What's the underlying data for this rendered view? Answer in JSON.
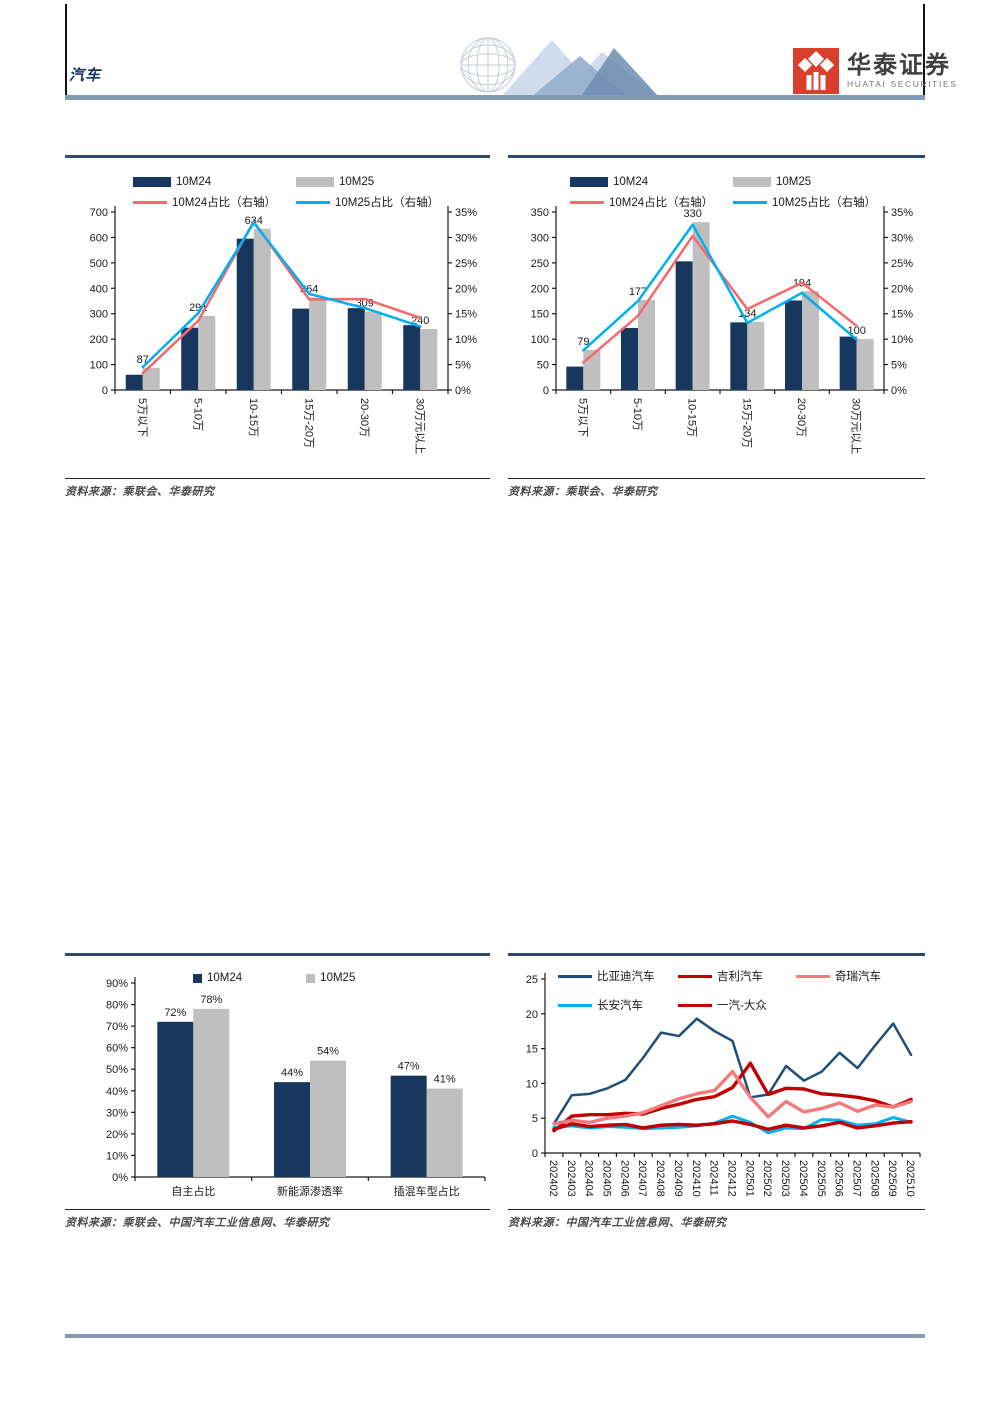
{
  "header": {
    "section_label": "汽车",
    "logo": {
      "brand_cn": "华泰证券",
      "brand_en": "HUATAI SECURITIES"
    }
  },
  "figures": [
    {
      "source": "资料来源：乘联会、华泰研究"
    },
    {
      "source": "资料来源：乘联会、华泰研究"
    },
    {
      "source": "资料来源：乘联会、中国汽车工业信息网、华泰研究"
    },
    {
      "source": "资料来源：中国汽车工业信息网、华泰研究"
    }
  ],
  "colors": {
    "navy": "#17375E",
    "gray": "#BFBFBF",
    "red": "#F4696B",
    "cyan": "#00B0F0",
    "byd": "#1F4E79",
    "darkred": "#C00000",
    "pink": "#F4797B",
    "steel_rule": "#8499B5",
    "fig_rule": "#2E4A73",
    "logo_red": "#D8402C"
  },
  "chart_data": [
    {
      "id": "top_left",
      "type": "bar+line",
      "categories": [
        "5万以下",
        "5-10万",
        "10-15万",
        "15万-20万",
        "20-30万",
        "30万元以上"
      ],
      "bar_series": [
        {
          "name": "10M24",
          "color_key": "navy",
          "show_labels": false,
          "values": [
            60,
            245,
            595,
            320,
            322,
            255
          ]
        },
        {
          "name": "10M25",
          "color_key": "gray",
          "show_labels": true,
          "values": [
            87,
            291,
            634,
            364,
            309,
            240
          ]
        }
      ],
      "line_series": [
        {
          "name": "10M24占比（右轴）",
          "color_key": "red",
          "values": [
            3.3,
            13.6,
            33.1,
            17.8,
            17.9,
            14.2
          ]
        },
        {
          "name": "10M25占比（右轴）",
          "color_key": "cyan",
          "values": [
            4.5,
            15.1,
            32.9,
            18.9,
            16.1,
            12.5
          ]
        }
      ],
      "left_axis": {
        "min": 0,
        "max": 700,
        "step": 100
      },
      "right_axis": {
        "min": 0,
        "max": 35,
        "step": 5,
        "unit": "%"
      },
      "legend_position": "top",
      "grid": false
    },
    {
      "id": "top_right",
      "type": "bar+line",
      "categories": [
        "5万以下",
        "5-10万",
        "10-15万",
        "15万-20万",
        "20-30万",
        "30万元以上"
      ],
      "bar_series": [
        {
          "name": "10M24",
          "color_key": "navy",
          "show_labels": false,
          "values": [
            46,
            122,
            253,
            133,
            176,
            105
          ]
        },
        {
          "name": "10M25",
          "color_key": "gray",
          "show_labels": true,
          "values": [
            79,
            177,
            330,
            134,
            194,
            100
          ]
        }
      ],
      "line_series": [
        {
          "name": "10M24占比（右轴）",
          "color_key": "red",
          "values": [
            5.4,
            14.6,
            30.3,
            15.9,
            21.1,
            12.6
          ]
        },
        {
          "name": "10M25占比（右轴）",
          "color_key": "cyan",
          "values": [
            7.8,
            17.5,
            32.5,
            13.2,
            19.1,
            9.9
          ]
        }
      ],
      "left_axis": {
        "min": 0,
        "max": 350,
        "step": 50
      },
      "right_axis": {
        "min": 0,
        "max": 35,
        "step": 5,
        "unit": "%"
      },
      "legend_position": "top",
      "grid": false
    },
    {
      "id": "bottom_left",
      "type": "bar",
      "categories": [
        "自主占比",
        "新能源渗透率",
        "插混车型占比"
      ],
      "series": [
        {
          "name": "10M24",
          "color_key": "navy",
          "values": [
            72,
            44,
            47
          ]
        },
        {
          "name": "10M25",
          "color_key": "gray",
          "values": [
            78,
            54,
            41
          ]
        }
      ],
      "y_axis": {
        "min": 0,
        "max": 90,
        "step": 10,
        "unit": "%"
      },
      "value_label_unit": "%",
      "legend_position": "top",
      "grid": false
    },
    {
      "id": "bottom_right",
      "type": "line",
      "x": [
        "202402",
        "202403",
        "202404",
        "202405",
        "202406",
        "202407",
        "202408",
        "202409",
        "202410",
        "202411",
        "202412",
        "202501",
        "202502",
        "202503",
        "202504",
        "202505",
        "202506",
        "202507",
        "202508",
        "202509",
        "202510"
      ],
      "series": [
        {
          "name": "比亚迪汽车",
          "color_key": "byd",
          "width": 2.5,
          "values": [
            4.2,
            8.3,
            8.5,
            9.3,
            10.5,
            13.7,
            17.3,
            16.8,
            19.3,
            17.5,
            16.1,
            8.0,
            8.4,
            12.5,
            10.4,
            11.7,
            14.4,
            12.2,
            15.5,
            18.6,
            14.1
          ]
        },
        {
          "name": "吉利汽车",
          "color_key": "darkred",
          "width": 3.4,
          "values": [
            3.2,
            5.3,
            5.5,
            5.5,
            5.7,
            5.6,
            6.4,
            7.0,
            7.7,
            8.1,
            9.4,
            12.9,
            8.4,
            9.3,
            9.2,
            8.5,
            8.3,
            8.0,
            7.5,
            6.6,
            7.7
          ]
        },
        {
          "name": "奇瑞汽车",
          "color_key": "pink",
          "width": 3.4,
          "values": [
            4.2,
            4.7,
            4.4,
            5.0,
            5.3,
            5.8,
            6.8,
            7.8,
            8.5,
            9.0,
            11.7,
            8.0,
            5.2,
            7.4,
            5.9,
            6.4,
            7.2,
            6.0,
            6.9,
            6.6,
            7.4
          ]
        },
        {
          "name": "长安汽车",
          "color_key": "cyan",
          "width": 3,
          "values": [
            3.7,
            3.9,
            3.6,
            3.8,
            3.7,
            3.5,
            3.6,
            3.7,
            3.9,
            4.3,
            5.3,
            4.4,
            2.9,
            3.6,
            3.5,
            4.8,
            4.7,
            4.0,
            4.2,
            5.1,
            4.4
          ]
        },
        {
          "name": "一汽-大众",
          "color_key": "darkred",
          "width": 3.4,
          "values": [
            3.4,
            4.2,
            3.8,
            4.0,
            4.1,
            3.6,
            4.0,
            4.1,
            4.0,
            4.2,
            4.6,
            4.1,
            3.4,
            4.0,
            3.6,
            3.9,
            4.4,
            3.6,
            3.9,
            4.3,
            4.5
          ]
        }
      ],
      "y_axis": {
        "min": 0,
        "max": 25,
        "step": 5
      },
      "legend_position": "top",
      "grid": false
    }
  ]
}
